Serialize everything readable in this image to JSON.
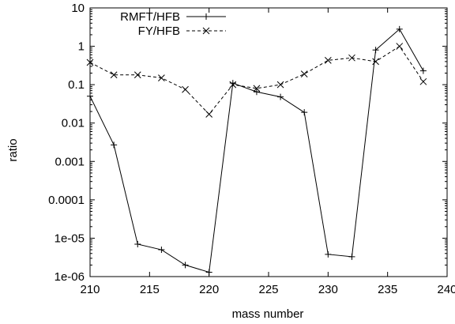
{
  "chart_data": {
    "type": "line",
    "xlabel": "mass number",
    "ylabel": "ratio",
    "xlim": [
      210,
      240
    ],
    "ylim": [
      1e-06,
      10
    ],
    "y_scale": "log",
    "grid": false,
    "legend_position": "top-right",
    "x_ticks": [
      "210",
      "215",
      "220",
      "225",
      "230",
      "235",
      "240"
    ],
    "x_tick_values": [
      210,
      215,
      220,
      225,
      230,
      235,
      240
    ],
    "y_ticks": [
      "1e-06",
      "1e-05",
      "0.0001",
      "0.001",
      "0.01",
      "0.1",
      "1",
      "10"
    ],
    "y_tick_values": [
      1e-06,
      1e-05,
      0.0001,
      0.001,
      0.01,
      0.1,
      1,
      10
    ],
    "series": [
      {
        "name": "RMFT/HFB",
        "line_style": "solid",
        "marker": "plus",
        "color": "#000000",
        "x": [
          210,
          212,
          214,
          216,
          218,
          220,
          222,
          224,
          226,
          228,
          230,
          232,
          234,
          236,
          238
        ],
        "y": [
          0.05,
          0.0027,
          7e-06,
          5e-06,
          2e-06,
          1.3e-06,
          0.11,
          0.065,
          0.048,
          0.019,
          3.8e-06,
          3.3e-06,
          0.8,
          2.8,
          0.23
        ]
      },
      {
        "name": "FY/HFB",
        "line_style": "dashed",
        "marker": "cross",
        "color": "#000000",
        "x": [
          210,
          212,
          214,
          216,
          218,
          220,
          222,
          224,
          226,
          228,
          230,
          232,
          234,
          236,
          238
        ],
        "y": [
          0.38,
          0.18,
          0.18,
          0.15,
          0.075,
          0.017,
          0.1,
          0.08,
          0.1,
          0.19,
          0.43,
          0.5,
          0.4,
          1.0,
          0.12
        ]
      }
    ]
  }
}
